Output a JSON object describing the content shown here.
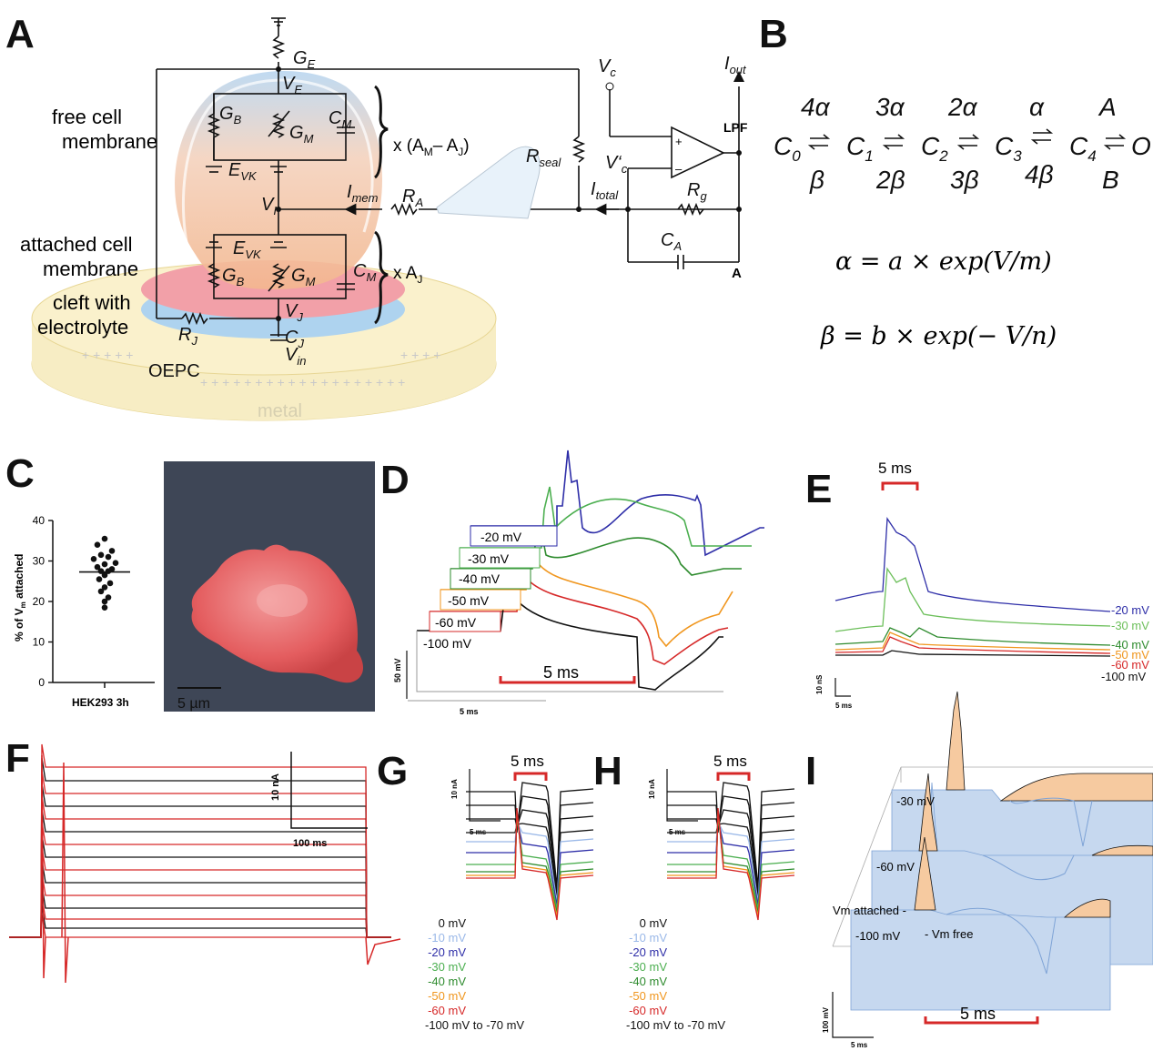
{
  "panels": {
    "A": "A",
    "B": "B",
    "C": "C",
    "D": "D",
    "E": "E",
    "F": "F",
    "G": "G",
    "H": "H",
    "I": "I"
  },
  "panel_a": {
    "free_cell_membrane": [
      "free cell",
      "membrane"
    ],
    "attached_cell_membrane": [
      "attached cell",
      "membrane"
    ],
    "cleft": [
      "cleft with",
      "electrolyte"
    ],
    "oepc": "OEPC",
    "metal": "metal",
    "GE": "G",
    "GE_sub": "E",
    "VE": "V",
    "VE_sub": "E",
    "GB": "G",
    "GB_sub": "B",
    "GM": "G",
    "GM_sub": "M",
    "CM": "C",
    "CM_sub": "M",
    "EVK": "E",
    "EVK_sub": "VK",
    "VI": "V",
    "VI_sub": "I",
    "Imem": "I",
    "Imem_sub": "mem",
    "RA": "R",
    "RA_sub": "A",
    "VJ": "V",
    "VJ_sub": "J",
    "CJ": "C",
    "CJ_sub": "J",
    "Vin": "V",
    "Vin_sub": "in",
    "RJ": "R",
    "RJ_sub": "J",
    "Rseal": "R",
    "Rseal_sub": "seal",
    "Vc": "V",
    "Vc_sub": "c",
    "Vc2": "V‘",
    "Vc2_sub": "c",
    "Iout": "I",
    "Iout_sub": "out",
    "LPF": "LPF",
    "Itotal": "I",
    "Itotal_sub": "total",
    "Rg": "R",
    "Rg_sub": "g",
    "CA": "C",
    "CA_sub": "A",
    "A_label": "A",
    "xAMAJ": "x (A",
    "xAMAJ_m": "M",
    "xAMAJ_mid": "– A",
    "xAMAJ_j": "J",
    "xAMAJ_end": ")",
    "xAJ": "x A",
    "xAJ_sub": "J",
    "plus": "+",
    "minus": "–"
  },
  "panel_b": {
    "rates_top": [
      "4α",
      "3α",
      "2α",
      "α",
      "A"
    ],
    "rates_bottom": [
      "β",
      "2β",
      "3β",
      "4β",
      "B"
    ],
    "states": [
      "C",
      "C",
      "C",
      "C",
      "C"
    ],
    "state_subs": [
      "0",
      "1",
      "2",
      "3",
      "4"
    ],
    "open_state": "O",
    "eq_alpha": "α =  a × exp(V/m)",
    "eq_beta": "β =  b × exp(− V/n)"
  },
  "panel_c": {
    "ylabel": "% of V",
    "ylabel_sub": "m",
    "ylabel_end": " attached",
    "xlabel": "HEK293 3h",
    "yticks": [
      "0",
      "10",
      "20",
      "30",
      "40"
    ],
    "scale": "5 µm"
  },
  "chart_data": [
    {
      "type": "scatter",
      "title": "",
      "xlabel": "HEK293 3h",
      "ylabel": "% of Vm attached",
      "ylim": [
        0,
        40
      ],
      "categories": [
        "HEK293 3h"
      ],
      "values": [
        35.5,
        34,
        32.5,
        31.5,
        31,
        30.5,
        29.5,
        29.2,
        28.5,
        28,
        27.5,
        27.5,
        26.5,
        25.5,
        24.5,
        23.5,
        22.5,
        21,
        20,
        18.5
      ],
      "mean": 27.3
    }
  ],
  "panel_d": {
    "labels": [
      "-20 mV",
      "-30 mV",
      "-40 mV",
      "-50 mV",
      "-60 mV",
      "-100 mV"
    ],
    "colors": [
      "#2e2ea8",
      "#4caf50",
      "#2e8b2e",
      "#f0961e",
      "#d62828",
      "#111111"
    ],
    "scale_red": "5 ms",
    "scale_y": "50 mV",
    "scale_x": "5 ms"
  },
  "panel_e": {
    "scale_top": "5 ms",
    "labels": [
      "-20 mV",
      "-30 mV",
      "-40 mV",
      "-50 mV",
      "-60 mV",
      "-100 mV"
    ],
    "colors": [
      "#2e2ea8",
      "#6cbf5a",
      "#2e8b2e",
      "#f0961e",
      "#d62828",
      "#111111"
    ],
    "scale_y": "10 nS",
    "scale_x": "5 ms"
  },
  "panel_f": {
    "scale_y": "10 nA",
    "scale_x": "100 ms"
  },
  "panel_g": {
    "scale_y": "10 nA",
    "scale_x": "5 ms",
    "scale_red": "5 ms",
    "labels": [
      "0 mV",
      "-10 mV",
      "-20 mV",
      "-30 mV",
      "-40 mV",
      "-50 mV",
      "-60 mV",
      "-100 mV to -70 mV"
    ],
    "colors": [
      "#111111",
      "#9ab8e8",
      "#2e2ea8",
      "#4caf50",
      "#2e8b2e",
      "#f0961e",
      "#d62828",
      "#111111"
    ]
  },
  "panel_h": {
    "scale_y": "10 nA",
    "scale_x": "5 ms",
    "scale_red": "5 ms",
    "labels": [
      "0 mV",
      "-10 mV",
      "-20 mV",
      "-30 mV",
      "-40 mV",
      "-50 mV",
      "-60 mV",
      "-100 mV to -70 mV"
    ],
    "colors": [
      "#111111",
      "#9ab8e8",
      "#2e2ea8",
      "#4caf50",
      "#2e8b2e",
      "#f0961e",
      "#d62828",
      "#111111"
    ]
  },
  "panel_i": {
    "labels": [
      "-30 mV",
      "-60 mV",
      "-100 mV"
    ],
    "vm_attached": "Vm attached -",
    "vm_free": "- Vm free",
    "scale_red": "5 ms",
    "scale_y": "100 mV",
    "scale_x": "5 ms"
  }
}
